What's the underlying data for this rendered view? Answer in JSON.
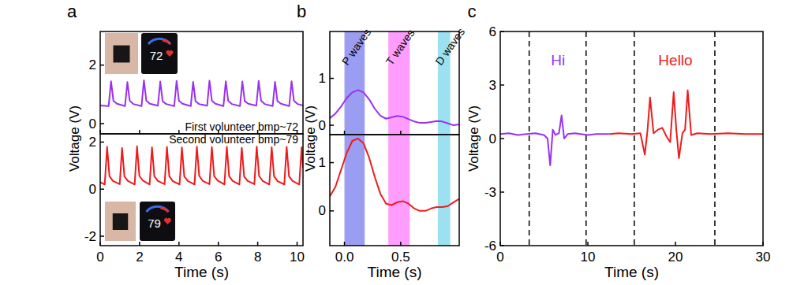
{
  "chart_data": [
    {
      "type": "line",
      "title": "a",
      "y_label": "Voltage (V)",
      "xlim": [
        0,
        10.3
      ],
      "xticks": [
        0,
        2,
        4,
        6,
        8,
        10
      ],
      "ylim": [
        -0.35,
        3.15
      ],
      "yticks": [
        0,
        2
      ],
      "tick_labels": "y",
      "x": [
        0,
        0.43,
        0.55,
        0.67,
        0.85,
        1.26,
        1.38,
        1.5,
        1.68,
        2.1,
        2.22,
        2.34,
        2.52,
        2.93,
        3.05,
        3.17,
        3.35,
        3.76,
        3.88,
        4.0,
        4.18,
        4.6,
        4.72,
        4.84,
        5.02,
        5.43,
        5.55,
        5.67,
        5.85,
        6.26,
        6.38,
        6.5,
        6.68,
        7.1,
        7.22,
        7.34,
        7.52,
        7.93,
        8.05,
        8.17,
        8.35,
        8.76,
        8.88,
        9.0,
        9.18,
        9.6,
        9.72,
        9.84,
        10.02,
        10.3
      ],
      "series": [
        {
          "color": "#9b30f0",
          "values": [
            0.62,
            0.6,
            1.45,
            0.78,
            0.68,
            0.6,
            1.42,
            0.78,
            0.67,
            0.6,
            1.48,
            0.79,
            0.68,
            0.61,
            1.44,
            0.77,
            0.67,
            0.6,
            1.46,
            0.78,
            0.68,
            0.6,
            1.43,
            0.77,
            0.67,
            0.61,
            1.47,
            0.79,
            0.68,
            0.6,
            1.45,
            0.78,
            0.67,
            0.6,
            1.44,
            0.77,
            0.68,
            0.61,
            1.46,
            0.78,
            0.67,
            0.6,
            1.43,
            0.77,
            0.68,
            0.6,
            1.45,
            0.78,
            0.67,
            0.62
          ]
        }
      ],
      "annotations": [
        {
          "text": "First volunteer bmp~72"
        }
      ],
      "inset_text": "72"
    },
    {
      "type": "line",
      "x_label": "Time (s)",
      "xlim": [
        0,
        10.3
      ],
      "xticks": [
        0,
        2,
        4,
        6,
        8,
        10
      ],
      "ylim": [
        -2.4,
        2.35
      ],
      "yticks": [
        -2,
        0,
        2
      ],
      "x": [
        0,
        0.23,
        0.35,
        0.47,
        0.65,
        0.99,
        1.11,
        1.23,
        1.41,
        1.75,
        1.87,
        1.99,
        2.17,
        2.51,
        2.63,
        2.75,
        2.93,
        3.27,
        3.39,
        3.51,
        3.69,
        4.03,
        4.15,
        4.27,
        4.45,
        4.79,
        4.91,
        5.03,
        5.21,
        5.55,
        5.67,
        5.79,
        5.97,
        6.31,
        6.43,
        6.55,
        6.73,
        7.07,
        7.19,
        7.31,
        7.49,
        7.83,
        7.95,
        8.07,
        8.25,
        8.59,
        8.71,
        8.83,
        9.01,
        9.35,
        9.47,
        9.59,
        9.77,
        10.11,
        10.23,
        10.3
      ],
      "series": [
        {
          "color": "#ee1c1c",
          "values": [
            0.3,
            0.2,
            1.8,
            0.55,
            0.35,
            0.21,
            1.75,
            0.54,
            0.35,
            0.2,
            1.82,
            0.56,
            0.36,
            0.2,
            1.78,
            0.55,
            0.35,
            0.21,
            1.8,
            0.55,
            0.34,
            0.2,
            1.77,
            0.54,
            0.35,
            0.2,
            1.81,
            0.56,
            0.35,
            0.21,
            1.79,
            0.55,
            0.36,
            0.2,
            1.8,
            0.55,
            0.35,
            0.2,
            1.76,
            0.54,
            0.35,
            0.21,
            1.81,
            0.56,
            0.35,
            0.2,
            1.78,
            0.55,
            0.34,
            0.2,
            1.8,
            0.55,
            0.35,
            0.2,
            1.78,
            0.9
          ]
        }
      ],
      "annotations": [
        {
          "text": "Second volunteer bmp~79"
        }
      ],
      "inset_text": "79"
    },
    {
      "type": "line",
      "title": "b",
      "y_label": "Voltage (V)",
      "xlim": [
        -0.13,
        1.02
      ],
      "xticks": [
        {
          "value": 0,
          "label": "0.0"
        },
        0.5
      ],
      "ylim": [
        -0.2,
        2.0
      ],
      "yticks": [
        0,
        1
      ],
      "tick_labels": "y",
      "x": [
        -0.13,
        -0.08,
        -0.03,
        0.02,
        0.07,
        0.12,
        0.17,
        0.22,
        0.27,
        0.32,
        0.37,
        0.42,
        0.47,
        0.52,
        0.57,
        0.62,
        0.67,
        0.72,
        0.77,
        0.82,
        0.87,
        0.92,
        0.97,
        1.02
      ],
      "series": [
        {
          "color": "#9b30f0",
          "values": [
            0.15,
            0.25,
            0.4,
            0.58,
            0.7,
            0.75,
            0.7,
            0.55,
            0.35,
            0.2,
            0.14,
            0.17,
            0.2,
            0.18,
            0.13,
            0.08,
            0.05,
            0.05,
            0.07,
            0.09,
            0.08,
            0.04,
            0.0,
            0.02
          ]
        }
      ],
      "bands": [
        {
          "label": "P waves",
          "start": 0.0,
          "end": 0.18,
          "color": "#8a8cf0"
        },
        {
          "label": "T waves",
          "start": 0.39,
          "end": 0.58,
          "color": "#ff8cff"
        },
        {
          "label": "D waves",
          "start": 0.83,
          "end": 0.94,
          "color": "#8adcf0"
        }
      ]
    },
    {
      "type": "line",
      "x_label": "Time (s)",
      "xlim": [
        -0.13,
        1.02
      ],
      "xticks": [
        {
          "value": 0,
          "label": "0.0"
        },
        0.5
      ],
      "ylim": [
        -0.72,
        1.58
      ],
      "yticks": [
        0,
        1
      ],
      "x": [
        -0.13,
        -0.08,
        -0.03,
        0.02,
        0.07,
        0.12,
        0.17,
        0.22,
        0.27,
        0.32,
        0.37,
        0.42,
        0.47,
        0.52,
        0.57,
        0.62,
        0.67,
        0.72,
        0.77,
        0.82,
        0.87,
        0.92,
        0.97,
        1.02
      ],
      "series": [
        {
          "color": "#ee1c1c",
          "values": [
            0.3,
            0.5,
            0.85,
            1.2,
            1.45,
            1.5,
            1.4,
            1.1,
            0.7,
            0.35,
            0.15,
            0.12,
            0.18,
            0.2,
            0.15,
            0.05,
            0.0,
            0.0,
            0.05,
            0.08,
            0.08,
            0.1,
            0.18,
            0.25
          ]
        }
      ],
      "bands": [
        {
          "start": 0.0,
          "end": 0.18,
          "color": "#8a8cf0"
        },
        {
          "start": 0.39,
          "end": 0.58,
          "color": "#ff8cff"
        },
        {
          "start": 0.83,
          "end": 0.94,
          "color": "#8adcf0"
        }
      ]
    },
    {
      "type": "line",
      "title": "c",
      "x_label": "Time (s)",
      "y_label": "Voltage (V)",
      "xlim": [
        0,
        30
      ],
      "xticks": [
        0,
        10,
        20,
        30
      ],
      "ylim": [
        -6,
        6
      ],
      "yticks": [
        -6,
        -3,
        0,
        3,
        6
      ],
      "x": [
        0,
        1,
        2,
        3,
        4,
        5,
        5.4,
        5.7,
        6.0,
        6.3,
        6.7,
        7.0,
        7.3,
        7.7,
        8.5,
        10,
        11,
        12.5,
        13.5,
        15,
        16,
        16.5,
        16.8,
        17.1,
        17.5,
        18.0,
        18.5,
        19.0,
        19.4,
        19.8,
        20.1,
        20.4,
        20.8,
        21.1,
        21.4,
        21.8,
        22.5,
        24,
        26,
        28,
        30
      ],
      "series": [
        {
          "color": "#9b30f0",
          "values": [
            0.25,
            0.3,
            0.2,
            0.25,
            0.3,
            0.2,
            0.0,
            -1.5,
            0.5,
            0.2,
            0.3,
            1.3,
            0.0,
            0.25,
            0.3,
            0.2,
            0.25,
            0.25,
            null,
            null,
            null,
            null,
            null,
            null,
            null,
            null,
            null,
            null,
            null,
            null,
            null,
            null,
            null,
            null,
            null,
            null,
            null,
            null,
            null,
            null,
            null
          ]
        },
        {
          "color": "#ee1c1c",
          "values": [
            null,
            null,
            null,
            null,
            null,
            null,
            null,
            null,
            null,
            null,
            null,
            null,
            null,
            null,
            null,
            null,
            null,
            0.25,
            0.3,
            0.25,
            0.3,
            -0.9,
            0.4,
            2.3,
            0.3,
            0.5,
            0.6,
            0.1,
            -0.2,
            2.6,
            0.5,
            -1.1,
            0.3,
            0.5,
            2.7,
            0.2,
            0.3,
            0.25,
            0.3,
            0.25,
            0.25
          ]
        }
      ],
      "vlines": [
        3.3,
        9.8,
        15.3,
        24.5
      ],
      "annotations": [
        {
          "text": "Hi",
          "x": 6.6,
          "y": 4.4,
          "color": "#9b30f0"
        },
        {
          "text": "Hello",
          "x": 20,
          "y": 4.4,
          "color": "#ee1c1c"
        }
      ]
    }
  ]
}
